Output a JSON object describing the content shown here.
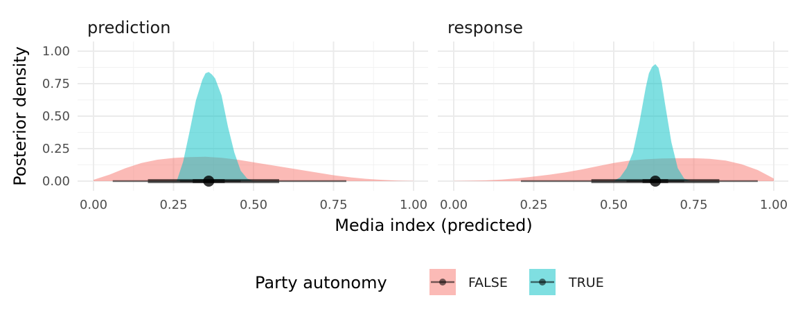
{
  "chart_data": {
    "type": "area",
    "xlabel": "Media index (predicted)",
    "ylabel": "Posterior density",
    "xlim": [
      0,
      1
    ],
    "ylim": [
      0,
      1
    ],
    "x_ticks": [
      "0.00",
      "0.25",
      "0.50",
      "0.75",
      "1.00"
    ],
    "y_ticks": [
      "0.00",
      "0.25",
      "0.50",
      "0.75",
      "1.00"
    ],
    "grid": true,
    "legend": {
      "title": "Party autonomy",
      "position": "bottom",
      "entries": [
        {
          "label": "FALSE",
          "color": "#F8766D"
        },
        {
          "label": "TRUE",
          "color": "#00BFC4"
        }
      ]
    },
    "panels": [
      {
        "title": "prediction",
        "series": [
          {
            "name": "FALSE",
            "color": "#F8766D",
            "x": [
              0.0,
              0.05,
              0.1,
              0.15,
              0.2,
              0.25,
              0.3,
              0.35,
              0.4,
              0.45,
              0.5,
              0.55,
              0.6,
              0.65,
              0.7,
              0.75,
              0.8,
              0.85,
              0.9,
              0.95,
              1.0
            ],
            "y": [
              0.01,
              0.05,
              0.1,
              0.14,
              0.165,
              0.178,
              0.185,
              0.187,
              0.18,
              0.165,
              0.145,
              0.125,
              0.105,
              0.085,
              0.065,
              0.045,
              0.03,
              0.018,
              0.01,
              0.004,
              0.001
            ],
            "point": 0.36,
            "interval_66": [
              0.17,
              0.58
            ],
            "interval_95": [
              0.06,
              0.79
            ]
          },
          {
            "name": "TRUE",
            "color": "#00BFC4",
            "x": [
              0.26,
              0.28,
              0.3,
              0.32,
              0.34,
              0.35,
              0.36,
              0.37,
              0.38,
              0.4,
              0.42,
              0.44,
              0.46,
              0.48,
              0.5
            ],
            "y": [
              0.0,
              0.15,
              0.38,
              0.62,
              0.78,
              0.83,
              0.84,
              0.82,
              0.79,
              0.66,
              0.42,
              0.22,
              0.08,
              0.02,
              0.0
            ],
            "point": 0.36,
            "interval_66": [
              0.31,
              0.41
            ],
            "interval_95": [
              0.27,
              0.46
            ]
          }
        ]
      },
      {
        "title": "response",
        "series": [
          {
            "name": "FALSE",
            "color": "#F8766D",
            "x": [
              0.0,
              0.05,
              0.1,
              0.15,
              0.2,
              0.25,
              0.3,
              0.35,
              0.4,
              0.45,
              0.5,
              0.55,
              0.6,
              0.65,
              0.7,
              0.75,
              0.8,
              0.85,
              0.9,
              0.95,
              1.0
            ],
            "y": [
              0.001,
              0.003,
              0.006,
              0.012,
              0.022,
              0.035,
              0.05,
              0.068,
              0.09,
              0.115,
              0.14,
              0.158,
              0.168,
              0.174,
              0.176,
              0.176,
              0.172,
              0.158,
              0.13,
              0.085,
              0.02
            ],
            "point": 0.63,
            "interval_66": [
              0.43,
              0.83
            ],
            "interval_95": [
              0.21,
              0.95
            ]
          },
          {
            "name": "TRUE",
            "color": "#00BFC4",
            "x": [
              0.5,
              0.52,
              0.54,
              0.56,
              0.58,
              0.6,
              0.61,
              0.62,
              0.63,
              0.64,
              0.65,
              0.66,
              0.68,
              0.7,
              0.72,
              0.74
            ],
            "y": [
              0.0,
              0.03,
              0.1,
              0.22,
              0.45,
              0.72,
              0.83,
              0.88,
              0.9,
              0.87,
              0.76,
              0.6,
              0.3,
              0.1,
              0.02,
              0.0
            ],
            "point": 0.63,
            "interval_66": [
              0.59,
              0.67
            ],
            "interval_95": [
              0.54,
              0.72
            ]
          }
        ]
      }
    ]
  }
}
